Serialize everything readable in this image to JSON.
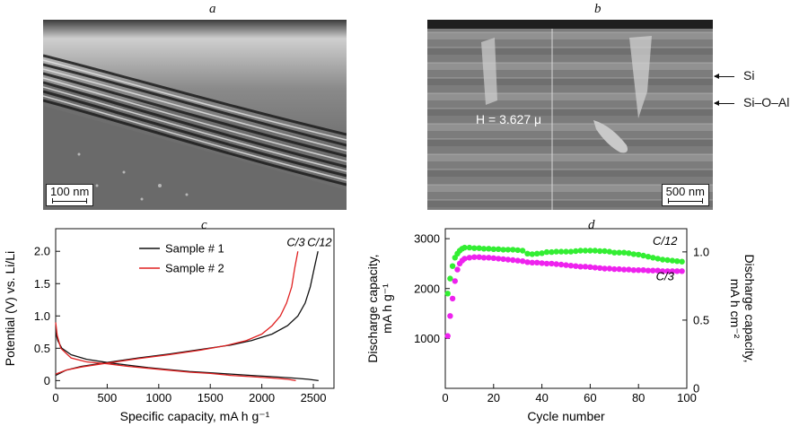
{
  "panels": {
    "a": {
      "letter": "a",
      "scale_label": "100 nm"
    },
    "b": {
      "letter": "b",
      "scale_label": "500 nm",
      "height_label": "H = 3.627 μ",
      "layer_labels": [
        "Si",
        "Si–O–Al"
      ]
    },
    "c": {
      "letter": "c"
    },
    "d": {
      "letter": "d"
    }
  },
  "chart_data": [
    {
      "type": "line",
      "panel": "c",
      "xlabel": "Specific capacity, mA h g⁻¹",
      "ylabel": "Potential (V) vs. Li/Li",
      "xlim": [
        0,
        2700
      ],
      "ylim": [
        -0.12,
        2.35
      ],
      "xticks": [
        0,
        500,
        1000,
        1500,
        2000,
        2500
      ],
      "yticks": [
        0,
        0.5,
        1.0,
        1.5,
        2.0
      ],
      "ytick_labels": [
        "0",
        "0.5",
        "1.0",
        "1.5",
        "2.0"
      ],
      "grid": false,
      "legend_position": "top-center",
      "annotations": [
        {
          "text": "C/3",
          "x": 2330,
          "y": 2.08
        },
        {
          "text": "C/12",
          "x": 2560,
          "y": 2.08
        }
      ],
      "series": [
        {
          "name": "Sample # 1",
          "color": "#111111",
          "charge": [
            [
              0,
              0.08
            ],
            [
              100,
              0.16
            ],
            [
              250,
              0.22
            ],
            [
              500,
              0.28
            ],
            [
              800,
              0.35
            ],
            [
              1100,
              0.41
            ],
            [
              1400,
              0.48
            ],
            [
              1700,
              0.55
            ],
            [
              1900,
              0.62
            ],
            [
              2100,
              0.72
            ],
            [
              2250,
              0.85
            ],
            [
              2350,
              1.0
            ],
            [
              2420,
              1.2
            ],
            [
              2470,
              1.45
            ],
            [
              2510,
              1.75
            ],
            [
              2545,
              2.0
            ]
          ],
          "discharge": [
            [
              0,
              0.75
            ],
            [
              20,
              0.62
            ],
            [
              60,
              0.5
            ],
            [
              150,
              0.4
            ],
            [
              300,
              0.33
            ],
            [
              500,
              0.28
            ],
            [
              700,
              0.24
            ],
            [
              900,
              0.2
            ],
            [
              1100,
              0.17
            ],
            [
              1300,
              0.14
            ],
            [
              1500,
              0.12
            ],
            [
              1700,
              0.1
            ],
            [
              1900,
              0.08
            ],
            [
              2100,
              0.06
            ],
            [
              2300,
              0.04
            ],
            [
              2450,
              0.02
            ],
            [
              2550,
              0.0
            ]
          ]
        },
        {
          "name": "Sample # 2",
          "color": "#e02020",
          "charge": [
            [
              0,
              0.1
            ],
            [
              100,
              0.16
            ],
            [
              250,
              0.21
            ],
            [
              500,
              0.27
            ],
            [
              800,
              0.34
            ],
            [
              1100,
              0.4
            ],
            [
              1400,
              0.47
            ],
            [
              1650,
              0.54
            ],
            [
              1850,
              0.62
            ],
            [
              2000,
              0.72
            ],
            [
              2100,
              0.85
            ],
            [
              2180,
              1.0
            ],
            [
              2240,
              1.2
            ],
            [
              2290,
              1.45
            ],
            [
              2320,
              1.75
            ],
            [
              2350,
              2.0
            ]
          ],
          "discharge": [
            [
              0,
              0.9
            ],
            [
              15,
              0.7
            ],
            [
              50,
              0.5
            ],
            [
              150,
              0.35
            ],
            [
              300,
              0.29
            ],
            [
              500,
              0.26
            ],
            [
              700,
              0.22
            ],
            [
              900,
              0.19
            ],
            [
              1100,
              0.16
            ],
            [
              1300,
              0.13
            ],
            [
              1500,
              0.11
            ],
            [
              1700,
              0.08
            ],
            [
              1900,
              0.06
            ],
            [
              2100,
              0.04
            ],
            [
              2250,
              0.02
            ],
            [
              2330,
              0.0
            ]
          ]
        }
      ]
    },
    {
      "type": "scatter",
      "panel": "d",
      "xlabel": "Cycle number",
      "ylabel": "Discharge capacity, mA h g⁻¹",
      "ylabel_right": "Discharge capacity, mA h cm⁻²",
      "xlim": [
        0,
        100
      ],
      "ylim": [
        0,
        3200
      ],
      "ylim_right": [
        0,
        1.17
      ],
      "xticks": [
        0,
        20,
        40,
        60,
        80,
        100
      ],
      "yticks": [
        1000,
        2000,
        3000
      ],
      "yticks_right": [
        0,
        0.5,
        1.0
      ],
      "ytick_right_labels": [
        "0",
        "0.5",
        "1.0"
      ],
      "grid": false,
      "annotations": [
        {
          "text": "C/12",
          "x": 91,
          "y": 2880
        },
        {
          "text": "C/3",
          "x": 91,
          "y": 2170
        }
      ],
      "series": [
        {
          "name": "C/12",
          "color": "#33ee33",
          "x": [
            1,
            2,
            3,
            4,
            5,
            6,
            7,
            8,
            10,
            12,
            14,
            16,
            18,
            20,
            22,
            24,
            26,
            28,
            30,
            32,
            34,
            36,
            38,
            40,
            42,
            44,
            46,
            48,
            50,
            52,
            54,
            56,
            58,
            60,
            62,
            64,
            66,
            68,
            70,
            72,
            74,
            76,
            78,
            80,
            82,
            84,
            86,
            88,
            90,
            92,
            94,
            96,
            98
          ],
          "values": [
            1900,
            2200,
            2450,
            2620,
            2700,
            2760,
            2800,
            2820,
            2820,
            2810,
            2810,
            2800,
            2800,
            2790,
            2790,
            2780,
            2780,
            2780,
            2770,
            2760,
            2700,
            2690,
            2700,
            2710,
            2730,
            2730,
            2740,
            2740,
            2740,
            2740,
            2750,
            2760,
            2760,
            2760,
            2760,
            2750,
            2750,
            2740,
            2720,
            2720,
            2720,
            2710,
            2690,
            2680,
            2660,
            2640,
            2620,
            2600,
            2580,
            2570,
            2560,
            2550,
            2540
          ]
        },
        {
          "name": "C/3",
          "color": "#ee22ee",
          "x": [
            1,
            2,
            3,
            4,
            5,
            6,
            7,
            8,
            10,
            12,
            14,
            16,
            18,
            20,
            22,
            24,
            26,
            28,
            30,
            32,
            34,
            36,
            38,
            40,
            42,
            44,
            46,
            48,
            50,
            52,
            54,
            56,
            58,
            60,
            62,
            64,
            66,
            68,
            70,
            72,
            74,
            76,
            78,
            80,
            82,
            84,
            86,
            88,
            90,
            92,
            94,
            96,
            98
          ],
          "values": [
            1050,
            1450,
            1800,
            2150,
            2380,
            2500,
            2560,
            2600,
            2620,
            2630,
            2630,
            2620,
            2620,
            2610,
            2600,
            2590,
            2580,
            2570,
            2560,
            2550,
            2530,
            2520,
            2520,
            2510,
            2500,
            2500,
            2490,
            2480,
            2470,
            2460,
            2450,
            2440,
            2440,
            2430,
            2420,
            2410,
            2400,
            2400,
            2390,
            2390,
            2380,
            2380,
            2370,
            2370,
            2370,
            2360,
            2360,
            2360,
            2350,
            2350,
            2350,
            2350,
            2350
          ]
        }
      ]
    }
  ]
}
